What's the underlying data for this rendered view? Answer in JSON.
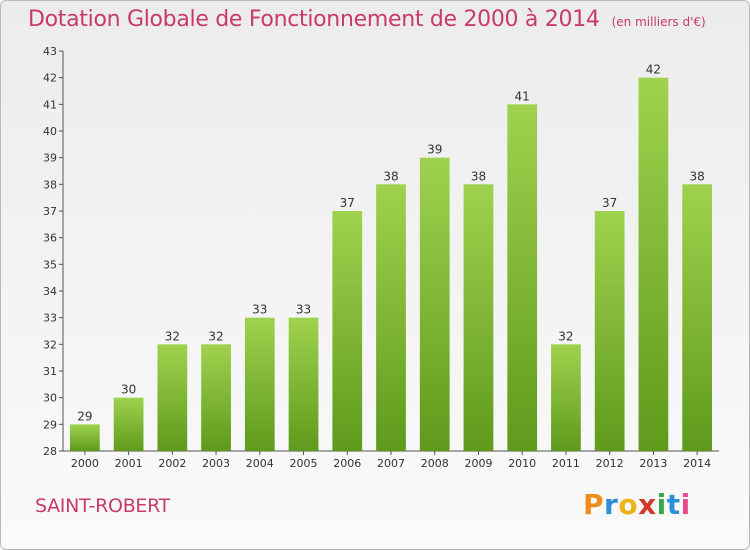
{
  "chart_data": {
    "type": "bar",
    "title": "Dotation Globale de Fonctionnement de 2000 à 2014",
    "subtitle": "(en milliers d'€)",
    "categories": [
      "2000",
      "2001",
      "2002",
      "2003",
      "2004",
      "2005",
      "2006",
      "2007",
      "2008",
      "2009",
      "2010",
      "2011",
      "2012",
      "2013",
      "2014"
    ],
    "values": [
      29,
      30,
      32,
      32,
      33,
      33,
      37,
      38,
      39,
      38,
      41,
      32,
      37,
      42,
      38
    ],
    "xlabel": "",
    "ylabel": "",
    "ylim": [
      28,
      43
    ],
    "yticks": [
      28,
      29,
      30,
      31,
      32,
      33,
      34,
      35,
      36,
      37,
      38,
      39,
      40,
      41,
      42,
      43
    ],
    "grid": false,
    "bar_color": "#7ab82e"
  },
  "footer": {
    "location": "SAINT-ROBERT"
  },
  "logo": {
    "text": "Proxiti",
    "colors": [
      "#f08c1a",
      "#2c8fd6",
      "#f0b21a",
      "#d23a2c",
      "#3aa84a",
      "#2c8fd6",
      "#e64a8a"
    ]
  }
}
